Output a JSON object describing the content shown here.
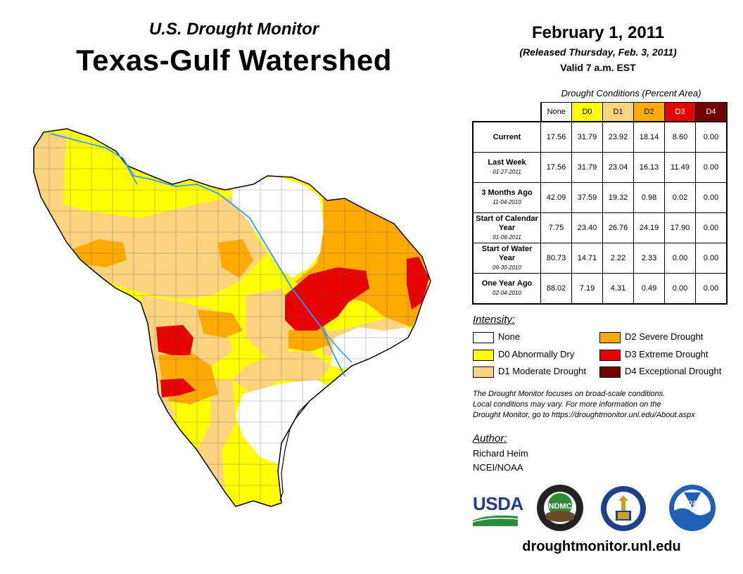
{
  "header": {
    "subtitle": "U.S. Drought Monitor",
    "title": "Texas-Gulf Watershed",
    "date": "February 1, 2011",
    "released": "(Released Thursday, Feb. 3, 2011)",
    "valid": "Valid 7 a.m. EST"
  },
  "table": {
    "caption": "Drought Conditions (Percent Area)",
    "columns": [
      "None",
      "D0",
      "D1",
      "D2",
      "D3",
      "D4"
    ],
    "column_colors": [
      "#ffffff",
      "#ffff00",
      "#fcd37f",
      "#ffaa00",
      "#e60000",
      "#730000"
    ],
    "rows": [
      {
        "label": "Current",
        "date": "",
        "values": [
          "17.56",
          "31.79",
          "23.92",
          "18.14",
          "8.60",
          "0.00"
        ]
      },
      {
        "label": "Last Week",
        "date": "01-27-2011",
        "values": [
          "17.56",
          "31.79",
          "23.04",
          "16.13",
          "11.49",
          "0.00"
        ]
      },
      {
        "label": "3 Months Ago",
        "date": "11-04-2010",
        "values": [
          "42.09",
          "37.59",
          "19.32",
          "0.98",
          "0.02",
          "0.00"
        ]
      },
      {
        "label": "Start of Calendar Year",
        "date": "01-06-2011",
        "values": [
          "7.75",
          "23.40",
          "26.76",
          "24.19",
          "17.90",
          "0.00"
        ]
      },
      {
        "label": "Start of Water Year",
        "date": "09-30-2010",
        "values": [
          "80.73",
          "14.71",
          "2.22",
          "2.33",
          "0.00",
          "0.00"
        ]
      },
      {
        "label": "One Year Ago",
        "date": "02-04-2010",
        "values": [
          "88.02",
          "7.19",
          "4.31",
          "0.49",
          "0.00",
          "0.00"
        ]
      }
    ]
  },
  "legend": {
    "title": "Intensity:",
    "items": [
      {
        "label": "None",
        "color": "#ffffff"
      },
      {
        "label": "D0 Abnormally Dry",
        "color": "#ffff00"
      },
      {
        "label": "D1 Moderate Drought",
        "color": "#fcd37f"
      },
      {
        "label": "D2 Severe Drought",
        "color": "#ffaa00"
      },
      {
        "label": "D3 Extreme Drought",
        "color": "#e60000"
      },
      {
        "label": "D4 Exceptional Drought",
        "color": "#730000"
      }
    ]
  },
  "note": {
    "line1": "The Drought Monitor focuses on broad-scale conditions.",
    "line2": "Local conditions may vary. For more information on the",
    "line3": "Drought Monitor, go to https://droughtmonitor.unl.edu/About.aspx"
  },
  "author": {
    "title": "Author:",
    "name": "Richard Heim",
    "org": "NCEI/NOAA"
  },
  "logos": {
    "usda": "USDA",
    "ndmc": "NDMC",
    "noaa": "NOAA"
  },
  "footer": {
    "site": "droughtmonitor.unl.edu"
  },
  "colors": {
    "none": "#ffffff",
    "d0": "#ffff00",
    "d1": "#fcd37f",
    "d2": "#ffaa00",
    "d3": "#e60000",
    "d4": "#730000",
    "river": "#3399ff",
    "usda_blue": "#1f3f8a",
    "usda_green": "#2e8b3a"
  }
}
